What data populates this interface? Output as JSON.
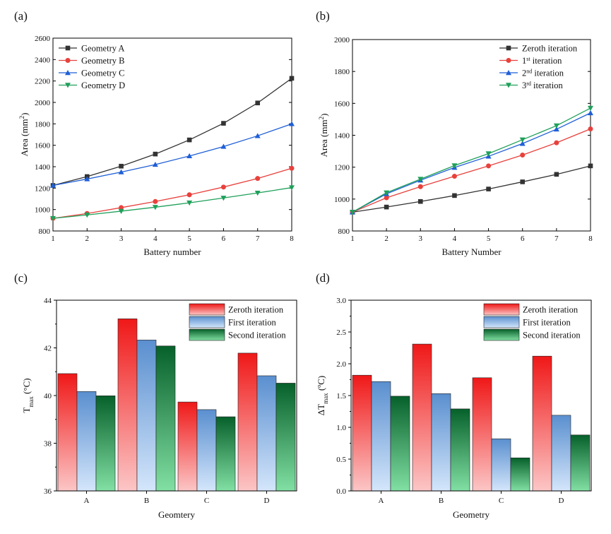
{
  "chart_data": [
    {
      "panel": "(a)",
      "type": "line",
      "title": "",
      "xlabel": "Battery number",
      "ylabel": "Area (mm²)",
      "ylabel_main": "Area (mm",
      "ylabel_sup": "2",
      "ylabel_end": ")",
      "x": [
        1,
        2,
        3,
        4,
        5,
        6,
        7,
        8
      ],
      "xlim": [
        1,
        8
      ],
      "ylim": [
        800,
        2600
      ],
      "yticks": [
        800,
        1000,
        1200,
        1400,
        1600,
        1800,
        2000,
        2200,
        2400,
        2600
      ],
      "legend_position": "top-left",
      "series": [
        {
          "name": "Geometry A",
          "color": "#333333",
          "marker": "square",
          "values": [
            1225,
            1308,
            1405,
            1518,
            1650,
            1805,
            1995,
            2225
          ]
        },
        {
          "name": "Geometry B",
          "color": "#e8413c",
          "marker": "circle",
          "values": [
            918,
            963,
            1018,
            1075,
            1138,
            1210,
            1290,
            1385
          ]
        },
        {
          "name": "Geometry C",
          "color": "#1f5fd6",
          "marker": "triangle-up",
          "values": [
            1225,
            1285,
            1350,
            1420,
            1500,
            1588,
            1688,
            1800
          ]
        },
        {
          "name": "Geometry D",
          "color": "#1fa05a",
          "marker": "triangle-down",
          "values": [
            918,
            950,
            985,
            1022,
            1063,
            1108,
            1155,
            1205
          ]
        }
      ]
    },
    {
      "panel": "(b)",
      "type": "line",
      "title": "",
      "xlabel": "Battery Number",
      "ylabel": "Area (mm²)",
      "ylabel_main": "Area (mm",
      "ylabel_sup": "2",
      "ylabel_end": ")",
      "x": [
        1,
        2,
        3,
        4,
        5,
        6,
        7,
        8
      ],
      "xlim": [
        1,
        8
      ],
      "ylim": [
        800,
        2000
      ],
      "yticks": [
        800,
        1000,
        1200,
        1400,
        1600,
        1800,
        2000
      ],
      "legend_position": "top-right",
      "series": [
        {
          "name": "Zeroth iteration",
          "label_main": "Zeroth iteration",
          "label_sup": "",
          "label_end": "",
          "color": "#333333",
          "marker": "square",
          "values": [
            918,
            950,
            985,
            1022,
            1063,
            1108,
            1155,
            1208
          ]
        },
        {
          "name": "1st iteration",
          "label_main": "1",
          "label_sup": "st",
          "label_end": " iteration",
          "color": "#e8413c",
          "marker": "circle",
          "values": [
            918,
            1008,
            1078,
            1143,
            1208,
            1276,
            1353,
            1440
          ]
        },
        {
          "name": "2nd iteration",
          "label_main": "2",
          "label_sup": "nd",
          "label_end": " iteration",
          "color": "#1f5fd6",
          "marker": "triangle-up",
          "values": [
            918,
            1033,
            1118,
            1198,
            1268,
            1348,
            1438,
            1540
          ]
        },
        {
          "name": "3rd iteration",
          "label_main": "3",
          "label_sup": "rd",
          "label_end": " iteration",
          "color": "#1fa05a",
          "marker": "triangle-down",
          "values": [
            918,
            1040,
            1125,
            1210,
            1285,
            1372,
            1460,
            1570
          ]
        }
      ]
    },
    {
      "panel": "(c)",
      "type": "bar",
      "title": "",
      "xlabel": "Geomtery",
      "ylabel": "Tmax (°C)",
      "ylabel_main": "T",
      "ylabel_sub": "max",
      "ylabel_end": " (°C)",
      "categories": [
        "A",
        "B",
        "C",
        "D"
      ],
      "ylim": [
        36,
        44
      ],
      "yticks": [
        36,
        38,
        40,
        42,
        44
      ],
      "legend_position": "top-right",
      "series": [
        {
          "name": "Zeroth iteration",
          "color_top": "#f01818",
          "color_bottom": "#fcc6c6",
          "values": [
            40.92,
            43.22,
            39.73,
            41.78
          ]
        },
        {
          "name": "First iteration",
          "color_top": "#5a8fcf",
          "color_bottom": "#d4e6fb",
          "values": [
            40.17,
            42.33,
            39.41,
            40.83
          ]
        },
        {
          "name": "Second iteration",
          "color_top": "#06602a",
          "color_bottom": "#82e0a4",
          "values": [
            39.99,
            42.08,
            39.11,
            40.52
          ]
        }
      ]
    },
    {
      "panel": "(d)",
      "type": "bar",
      "title": "",
      "xlabel": "Geometry",
      "ylabel": "ΔTmax (ºC)",
      "ylabel_main": "ΔT",
      "ylabel_sub": "max",
      "ylabel_end": " (ºC)",
      "categories": [
        "A",
        "B",
        "C",
        "D"
      ],
      "ylim": [
        0.0,
        3.0
      ],
      "yticks": [
        0.0,
        0.5,
        1.0,
        1.5,
        2.0,
        2.5,
        3.0
      ],
      "legend_position": "top-right",
      "series": [
        {
          "name": "Zeroth iteration",
          "color_top": "#f01818",
          "color_bottom": "#fcc6c6",
          "values": [
            1.82,
            2.31,
            1.78,
            2.12
          ]
        },
        {
          "name": "First iteration",
          "color_top": "#5a8fcf",
          "color_bottom": "#d4e6fb",
          "values": [
            1.72,
            1.53,
            0.82,
            1.19
          ]
        },
        {
          "name": "Second iteration",
          "color_top": "#06602a",
          "color_bottom": "#82e0a4",
          "values": [
            1.49,
            1.29,
            0.52,
            0.88
          ]
        }
      ]
    }
  ]
}
